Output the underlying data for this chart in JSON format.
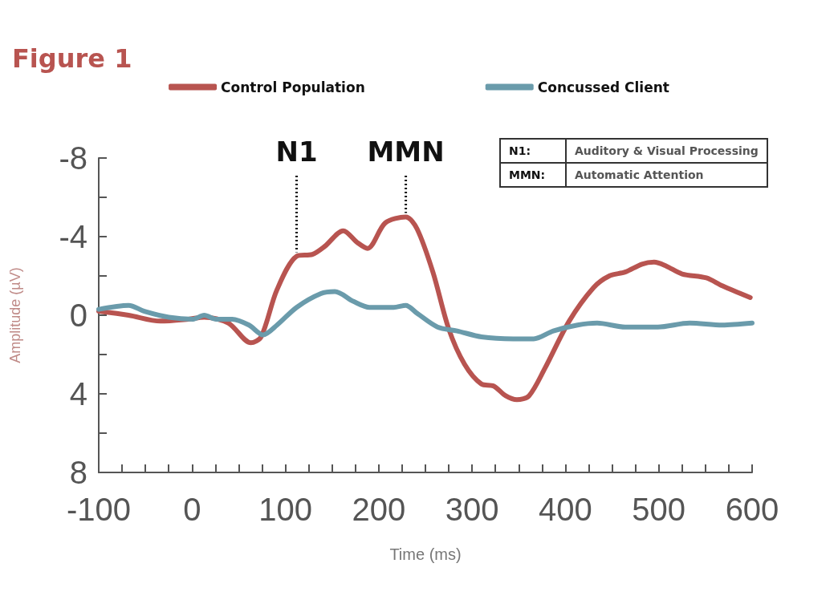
{
  "chart_data": {
    "type": "line",
    "title": "Figure 1",
    "xlabel": "Time (ms)",
    "ylabel": "Amplitude (µV)",
    "xlim": [
      -100,
      600
    ],
    "xticks": [
      -100,
      {
        "value": -75,
        "label": null
      },
      {
        "value": -50,
        "label": null
      },
      {
        "value": -25,
        "label": null
      },
      0,
      {
        "value": 25,
        "label": null
      },
      {
        "value": 50,
        "label": null
      },
      {
        "value": 75,
        "label": null
      },
      100,
      {
        "value": 125,
        "label": null
      },
      {
        "value": 150,
        "label": null
      },
      {
        "value": 175,
        "label": null
      },
      200,
      {
        "value": 225,
        "label": null
      },
      {
        "value": 250,
        "label": null
      },
      {
        "value": 275,
        "label": null
      },
      300,
      {
        "value": 325,
        "label": null
      },
      {
        "value": 350,
        "label": null
      },
      {
        "value": 375,
        "label": null
      },
      400,
      {
        "value": 425,
        "label": null
      },
      {
        "value": 450,
        "label": null
      },
      {
        "value": 475,
        "label": null
      },
      500,
      {
        "value": 525,
        "label": null
      },
      {
        "value": 550,
        "label": null
      },
      {
        "value": 575,
        "label": null
      },
      600
    ],
    "ylim": [
      8,
      -8
    ],
    "yticks": [
      -8,
      {
        "value": -6,
        "label": null
      },
      -4,
      {
        "value": -2,
        "label": null
      },
      0,
      {
        "value": 2,
        "label": null
      },
      4,
      {
        "value": 6,
        "label": null
      },
      8
    ],
    "grid": false,
    "legend": "top",
    "marker": "none",
    "line_style": "solid",
    "series": [
      {
        "name": "Control Population",
        "color": "#b85450",
        "x": [
          -100,
          -68,
          -34,
          -4,
          13,
          39,
          63,
          74,
          91,
          112,
          129,
          142,
          162,
          177,
          188,
          207,
          229,
          241,
          258,
          275,
          292,
          310,
          323,
          336,
          348,
          361,
          378,
          404,
          430,
          447,
          464,
          482,
          495,
          508,
          525,
          551,
          568,
          598
        ],
        "values": [
          -0.2,
          0,
          0.3,
          0.2,
          0.1,
          0.4,
          1.4,
          1.1,
          -1.3,
          -3.0,
          -3.1,
          -3.5,
          -4.3,
          -3.7,
          -3.4,
          -4.7,
          -5.0,
          -4.4,
          -2.2,
          0.7,
          2.5,
          3.5,
          3.6,
          4.1,
          4.3,
          4.1,
          2.7,
          0.3,
          -1.4,
          -2.0,
          -2.2,
          -2.6,
          -2.7,
          -2.5,
          -2.1,
          -1.9,
          -1.5,
          -0.9
        ]
      },
      {
        "name": "Concussed Client",
        "color": "#6a9bab",
        "x": [
          -100,
          -68,
          -51,
          -25,
          1,
          13,
          26,
          43,
          61,
          76,
          91,
          112,
          138,
          153,
          173,
          190,
          216,
          229,
          241,
          263,
          284,
          310,
          344,
          366,
          387,
          413,
          434,
          464,
          499,
          533,
          568,
          600
        ],
        "values": [
          -0.3,
          -0.5,
          -0.2,
          0.1,
          0.2,
          0,
          0.2,
          0.2,
          0.5,
          1.0,
          0.5,
          -0.4,
          -1.1,
          -1.2,
          -0.7,
          -0.4,
          -0.4,
          -0.5,
          -0.1,
          0.6,
          0.8,
          1.1,
          1.2,
          1.2,
          0.8,
          0.5,
          0.4,
          0.6,
          0.6,
          0.4,
          0.5,
          0.4
        ]
      }
    ],
    "annotations": [
      {
        "text": "N1",
        "x": 112,
        "y": -3.0
      },
      {
        "text": "MMN",
        "x": 229,
        "y": -5.0
      },
      "N1:",
      "Auditory & Visual Processing",
      "MMN:",
      "Automatic Attention"
    ]
  }
}
